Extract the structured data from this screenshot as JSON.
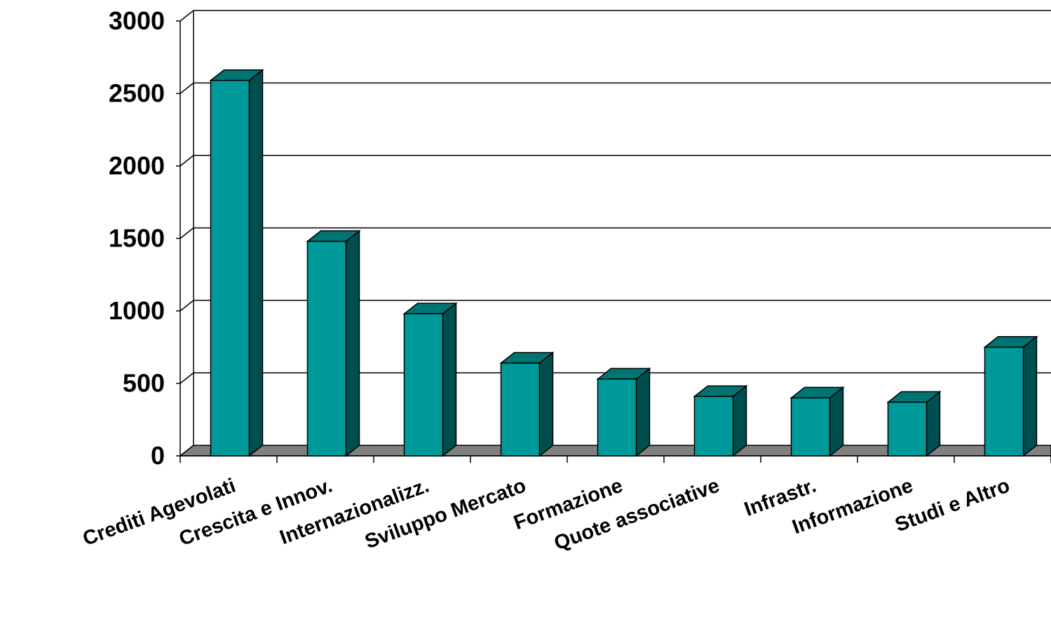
{
  "chart_data": {
    "type": "bar",
    "title": "",
    "xlabel": "",
    "ylabel": "",
    "ylim": [
      0,
      3000
    ],
    "yticks": [
      "0",
      "500",
      "1000",
      "1500",
      "2000",
      "2500",
      "3000"
    ],
    "grid": true,
    "categories": [
      "Crediti Agevolati",
      "Crescita e Innov.",
      "Internazionalizz.",
      "Sviluppo Mercato",
      "Formazione",
      "Quote associative",
      "Infrastr.",
      "Informazione",
      "Studi e Altro"
    ],
    "values": [
      2590,
      1480,
      980,
      640,
      530,
      410,
      400,
      370,
      750
    ],
    "colors": {
      "bar_front": "#009999",
      "bar_top": "#007373",
      "bar_side": "#004f4f",
      "floor": "#808080",
      "grid": "#000000"
    }
  }
}
